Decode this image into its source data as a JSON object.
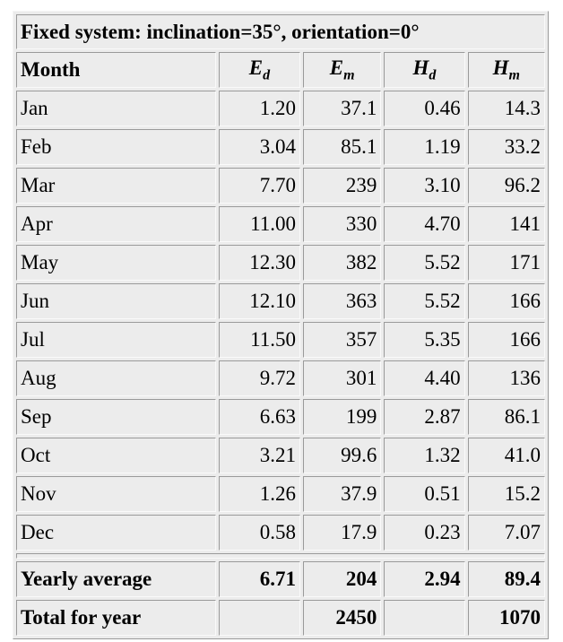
{
  "table": {
    "title": "Fixed system: inclination=35°, orientation=0°",
    "header": {
      "first": "Month",
      "columns": [
        {
          "main": "E",
          "sub": "d"
        },
        {
          "main": "E",
          "sub": "m"
        },
        {
          "main": "H",
          "sub": "d"
        },
        {
          "main": "H",
          "sub": "m"
        }
      ]
    },
    "rows": [
      [
        "Jan",
        "1.20",
        "37.1",
        "0.46",
        "14.3"
      ],
      [
        "Feb",
        "3.04",
        "85.1",
        "1.19",
        "33.2"
      ],
      [
        "Mar",
        "7.70",
        "239",
        "3.10",
        "96.2"
      ],
      [
        "Apr",
        "11.00",
        "330",
        "4.70",
        "141"
      ],
      [
        "May",
        "12.30",
        "382",
        "5.52",
        "171"
      ],
      [
        "Jun",
        "12.10",
        "363",
        "5.52",
        "166"
      ],
      [
        "Jul",
        "11.50",
        "357",
        "5.35",
        "166"
      ],
      [
        "Aug",
        "9.72",
        "301",
        "4.40",
        "136"
      ],
      [
        "Sep",
        "6.63",
        "199",
        "2.87",
        "86.1"
      ],
      [
        "Oct",
        "3.21",
        "99.6",
        "1.32",
        "41.0"
      ],
      [
        "Nov",
        "1.26",
        "37.9",
        "0.51",
        "15.2"
      ],
      [
        "Dec",
        "0.58",
        "17.9",
        "0.23",
        "7.07"
      ]
    ],
    "summary": [
      [
        "Yearly average",
        "6.71",
        "204",
        "2.94",
        "89.4"
      ],
      [
        "Total for year",
        null,
        "2450",
        null,
        "1070"
      ]
    ]
  }
}
